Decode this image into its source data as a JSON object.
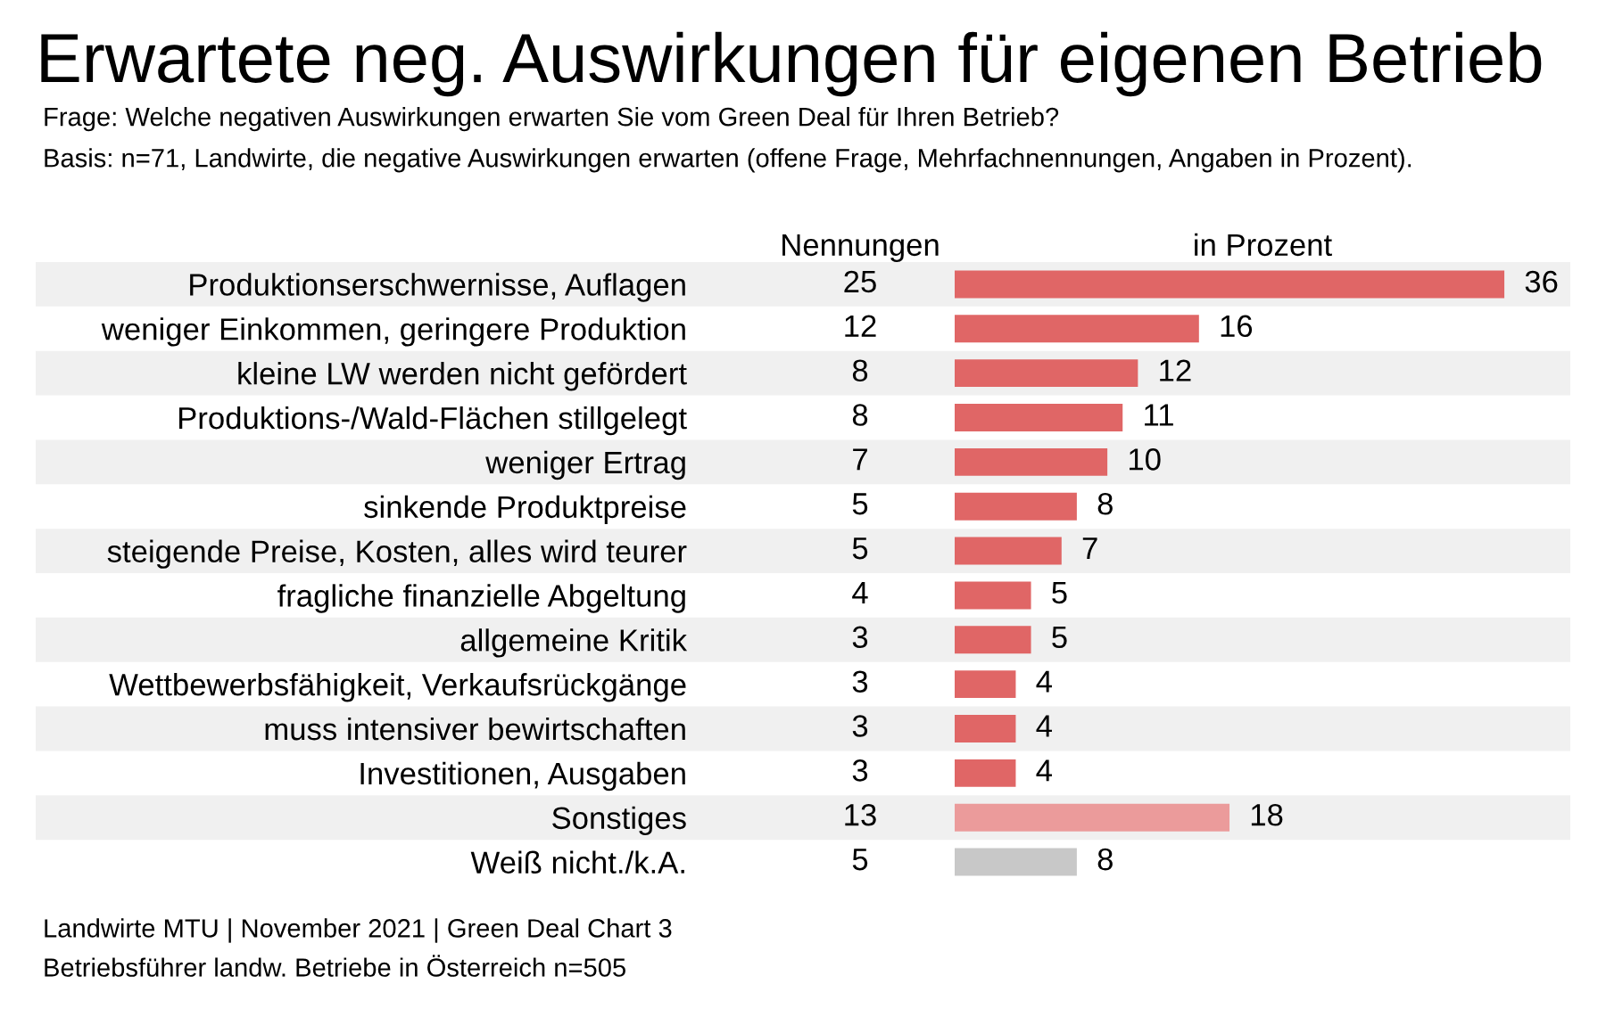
{
  "chart_data": [
    {
      "type": "other",
      "title": "Erwartete neg. Auswirkungen für eigenen Betrieb",
      "subtitle": "Frage: Welche negativen Auswirkungen erwarten Sie vom Green Deal für Ihren Betrieb?\nBasis: n=71, Landwirte, die negative Auswirkungen erwarten (offene Frage, Mehrfachnennungen, Angaben in Prozent).",
      "categories": [
        null,
        null,
        null,
        null,
        null,
        null,
        null,
        null,
        null,
        null,
        null,
        null,
        null,
        null
      ],
      "series": [
        {
          "name": "Nennungen",
          "values": [
            25,
            12,
            8,
            8,
            7,
            5,
            5,
            4,
            3,
            3,
            3,
            3,
            13,
            5
          ]
        }
      ],
      "data_labels": true,
      "annotations": [
        "Landwirte MTU | November 2021 | Green Deal Chart 3",
        "Betriebsführer landw. Betriebe in Österreich n=505"
      ]
    },
    {
      "type": "bar",
      "orientation": "horizontal",
      "title": "in Prozent",
      "categories": [
        "Produktionserschwernisse, Auflagen",
        "weniger Einkommen, geringere Produktion",
        "kleine LW werden nicht gefördert",
        "Produktions-/Wald-Flächen stillgelegt",
        "weniger Ertrag",
        "sinkende Produktpreise",
        "steigende Preise, Kosten, alles wird teurer",
        "fragliche finanzielle Abgeltung",
        "allgemeine Kritik",
        "Wettbewerbsfähigkeit, Verkaufsrückgänge",
        "muss intensiver bewirtschaften",
        "Investitionen, Ausgaben",
        "Sonstiges",
        "Weiß nicht./k.A."
      ],
      "values": [
        36,
        16,
        12,
        11,
        10,
        8,
        7,
        5,
        5,
        4,
        4,
        4,
        18,
        8
      ],
      "colors": [
        "#e06666",
        "#e06666",
        "#e06666",
        "#e06666",
        "#e06666",
        "#e06666",
        "#e06666",
        "#e06666",
        "#e06666",
        "#e06666",
        "#e06666",
        "#e06666",
        "#eb9b9b",
        "#c8c8c8"
      ],
      "data_labels": true
    }
  ]
}
